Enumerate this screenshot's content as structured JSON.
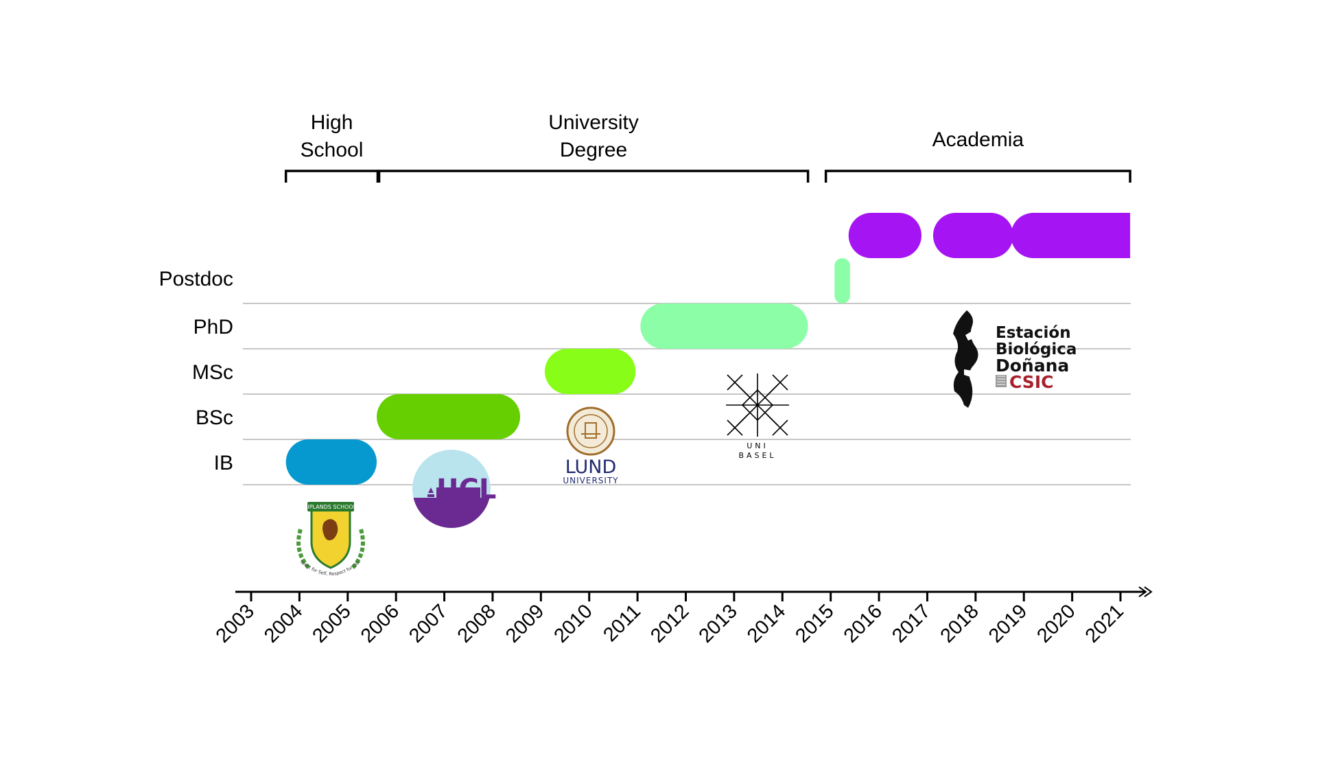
{
  "chart_data": {
    "type": "timeline",
    "x": [
      "2003",
      "2004",
      "2005",
      "2006",
      "2007",
      "2008",
      "2009",
      "2010",
      "2011",
      "2012",
      "2013",
      "2014",
      "2015",
      "2016",
      "2017",
      "2018",
      "2019",
      "2020",
      "2021"
    ],
    "rows": [
      "IB",
      "BSc",
      "MSc",
      "PhD",
      "Postdoc"
    ],
    "bars": [
      {
        "row": "IB",
        "start": 2003.72,
        "end": 2005.6,
        "color": "#0599cf"
      },
      {
        "row": "BSc",
        "start": 2005.6,
        "end": 2008.57,
        "color": "#65cf02"
      },
      {
        "row": "MSc",
        "start": 2009.08,
        "end": 2010.96,
        "color": "#88fd17"
      },
      {
        "row": "PhD",
        "start": 2011.06,
        "end": 2014.53,
        "color": "#8cfea8"
      },
      {
        "row": "Postdoc",
        "start": 2015.08,
        "end": 2015.4,
        "color": "#8cfea8",
        "thin": true
      },
      {
        "row": "Postdoc",
        "start": 2015.37,
        "end": 2016.88,
        "color": "#a515f3"
      },
      {
        "row": "Postdoc",
        "start": 2017.12,
        "end": 2018.78,
        "color": "#a515f3"
      },
      {
        "row": "Postdoc",
        "start": 2018.73,
        "end": 2021.2,
        "color": "#a515f3",
        "square_end": true
      }
    ],
    "periods": [
      {
        "label": [
          "High",
          "School"
        ],
        "start": 2003.72,
        "end": 2005.62
      },
      {
        "label": [
          "University",
          "Degree"
        ],
        "start": 2005.65,
        "end": 2014.53
      },
      {
        "label": [
          "Academia"
        ],
        "start": 2014.9,
        "end": 2021.2
      }
    ],
    "logos": [
      {
        "name": "uplands-school-logo",
        "text": [
          "UPLANDS SCHOOL",
          "Respect for Self, Respect for Others"
        ]
      },
      {
        "name": "ucl-logo",
        "text": [
          "UCL"
        ]
      },
      {
        "name": "lund-university-logo",
        "text": [
          "LUND",
          "UNIVERSITY"
        ]
      },
      {
        "name": "uni-basel-logo",
        "text": [
          "UNI",
          "BASEL"
        ]
      },
      {
        "name": "estacion-biologica-donana-logo",
        "text": [
          "Estación",
          "Biológica",
          "Doñana",
          "CSIC"
        ]
      }
    ],
    "colors": {
      "axis": "#000000",
      "gridline": "#b3b3b3"
    }
  }
}
